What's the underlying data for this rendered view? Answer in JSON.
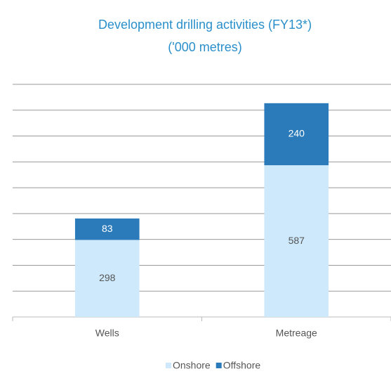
{
  "chart_data": {
    "type": "stacked_bar",
    "title": "Development drilling activities (FY13*)",
    "subtitle": "('000 metres)",
    "categories": [
      "Wells",
      "Metreage"
    ],
    "series": [
      {
        "name": "Onshore",
        "color": "#cde9fb",
        "values": [
          298,
          587
        ]
      },
      {
        "name": "Offshore",
        "color": "#2b7bba",
        "values": [
          83,
          240
        ]
      }
    ],
    "ylim": [
      0,
      900
    ],
    "yticks": [
      0,
      100,
      200,
      300,
      400,
      500,
      600,
      700,
      800,
      900
    ],
    "grid": true,
    "legend": "bottom"
  }
}
